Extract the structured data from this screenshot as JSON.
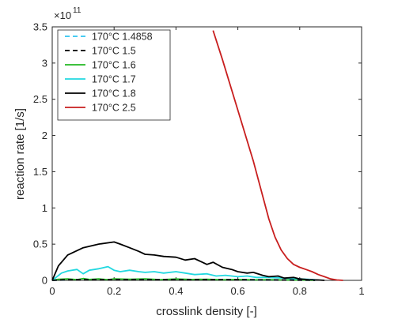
{
  "chart_data": {
    "type": "line",
    "title": "",
    "xlabel": "crosslink density [-]",
    "ylabel": "reaction rate [1/s]",
    "xlim": [
      0,
      1
    ],
    "ylim": [
      0,
      3.5
    ],
    "y_multiplier_label": "×10",
    "y_multiplier_exponent": "11",
    "x_ticks": [
      0,
      0.2,
      0.4,
      0.6,
      0.8,
      1
    ],
    "x_tick_labels": [
      "0",
      "0.2",
      "0.4",
      "0.6",
      "0.8",
      "1"
    ],
    "y_ticks": [
      0,
      0.5,
      1,
      1.5,
      2,
      2.5,
      3,
      3.5
    ],
    "y_tick_labels": [
      "0",
      "0.5",
      "1",
      "1.5",
      "2",
      "2.5",
      "3",
      "3.5"
    ],
    "grid": false,
    "legend_position": "top-left",
    "series": [
      {
        "name": "170°C 1.4858",
        "color": "#2ec4f0",
        "dash": "dashed",
        "x": [
          0,
          0.05,
          0.1,
          0.2,
          0.3,
          0.4,
          0.5,
          0.6,
          0.7,
          0.8,
          0.85
        ],
        "y": [
          0,
          0.01,
          0.01,
          0.01,
          0.01,
          0.01,
          0.01,
          0.01,
          0.005,
          0.003,
          0.002
        ]
      },
      {
        "name": "170°C 1.5",
        "color": "#000000",
        "dash": "dashed",
        "x": [
          0,
          0.05,
          0.1,
          0.2,
          0.3,
          0.4,
          0.5,
          0.6,
          0.7,
          0.8,
          0.85
        ],
        "y": [
          0,
          0.01,
          0.01,
          0.01,
          0.01,
          0.01,
          0.01,
          0.01,
          0.005,
          0.003,
          0.002
        ]
      },
      {
        "name": "170°C 1.6",
        "color": "#22b822",
        "dash": "solid",
        "x": [
          0,
          0.02,
          0.05,
          0.08,
          0.1,
          0.12,
          0.15,
          0.18,
          0.2,
          0.25,
          0.3,
          0.35,
          0.4,
          0.45,
          0.5,
          0.55,
          0.6,
          0.65,
          0.7,
          0.75,
          0.8,
          0.85
        ],
        "y": [
          0,
          0.015,
          0.02,
          0.01,
          0.025,
          0.012,
          0.02,
          0.01,
          0.02,
          0.015,
          0.02,
          0.01,
          0.018,
          0.012,
          0.015,
          0.008,
          0.012,
          0.006,
          0.01,
          0.005,
          0.004,
          0.002
        ]
      },
      {
        "name": "170°C 1.7",
        "color": "#22d8e0",
        "dash": "solid",
        "x": [
          0,
          0.03,
          0.05,
          0.08,
          0.1,
          0.12,
          0.15,
          0.18,
          0.2,
          0.22,
          0.25,
          0.28,
          0.3,
          0.33,
          0.36,
          0.4,
          0.43,
          0.46,
          0.5,
          0.53,
          0.56,
          0.6,
          0.63,
          0.66,
          0.7,
          0.75,
          0.8,
          0.85
        ],
        "y": [
          0,
          0.1,
          0.13,
          0.15,
          0.09,
          0.14,
          0.16,
          0.19,
          0.14,
          0.12,
          0.14,
          0.12,
          0.11,
          0.12,
          0.1,
          0.12,
          0.1,
          0.08,
          0.09,
          0.06,
          0.07,
          0.05,
          0.06,
          0.04,
          0.04,
          0.03,
          0.02,
          0.01
        ]
      },
      {
        "name": "170°C 1.8",
        "color": "#000000",
        "dash": "solid",
        "x": [
          0,
          0.02,
          0.05,
          0.1,
          0.15,
          0.2,
          0.22,
          0.25,
          0.28,
          0.3,
          0.33,
          0.36,
          0.4,
          0.43,
          0.46,
          0.5,
          0.52,
          0.55,
          0.58,
          0.6,
          0.63,
          0.65,
          0.68,
          0.7,
          0.73,
          0.75,
          0.78,
          0.8,
          0.83,
          0.86,
          0.88
        ],
        "y": [
          0,
          0.2,
          0.35,
          0.45,
          0.5,
          0.53,
          0.5,
          0.45,
          0.4,
          0.36,
          0.35,
          0.33,
          0.32,
          0.28,
          0.3,
          0.22,
          0.25,
          0.18,
          0.15,
          0.12,
          0.1,
          0.11,
          0.07,
          0.05,
          0.06,
          0.03,
          0.04,
          0.02,
          0.01,
          0.005,
          0.0
        ]
      },
      {
        "name": "170°C 2.5",
        "color": "#c81e1e",
        "dash": "solid",
        "x": [
          0.52,
          0.55,
          0.6,
          0.65,
          0.7,
          0.72,
          0.74,
          0.76,
          0.78,
          0.8,
          0.82,
          0.84,
          0.86,
          0.88,
          0.9,
          0.92,
          0.94
        ],
        "y": [
          3.45,
          3.05,
          2.35,
          1.65,
          0.85,
          0.6,
          0.42,
          0.3,
          0.22,
          0.18,
          0.15,
          0.12,
          0.08,
          0.05,
          0.02,
          0.005,
          0.0
        ]
      }
    ]
  }
}
